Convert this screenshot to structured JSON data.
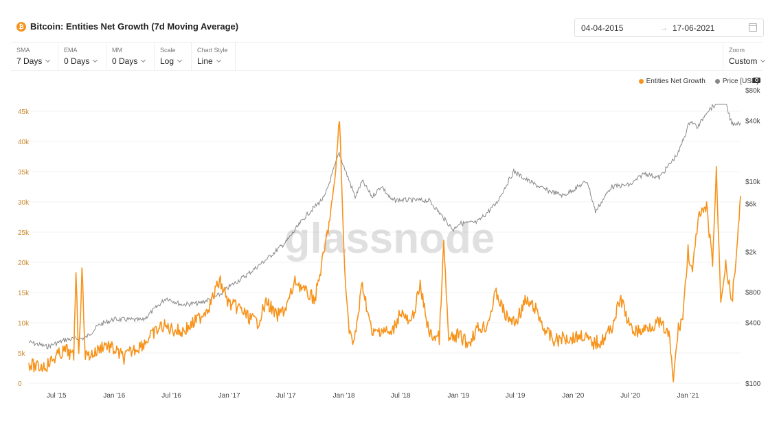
{
  "header": {
    "icon_symbol": "₿",
    "title": "Bitcoin: Entities Net Growth (7d Moving Average)",
    "date_start": "04-04-2015",
    "date_end": "17-06-2021",
    "arrow": "→"
  },
  "controls": [
    {
      "label": "SMA",
      "value": "7 Days"
    },
    {
      "label": "EMA",
      "value": "0 Days"
    },
    {
      "label": "MM",
      "value": "0 Days"
    },
    {
      "label": "Scale",
      "value": "Log"
    },
    {
      "label": "Chart Style",
      "value": "Line"
    }
  ],
  "zoom": {
    "label": "Zoom",
    "value": "Custom"
  },
  "watermark": "glassnode",
  "legend": [
    {
      "name": "Entities Net Growth",
      "color": "#f7931a"
    },
    {
      "name": "Price [USD]",
      "color": "#888888"
    }
  ],
  "chart_data": {
    "type": "line",
    "grid": true,
    "legend_position": "top-right",
    "x_ticks": [
      "Jul '15",
      "Jan '16",
      "Jul '16",
      "Jan '17",
      "Jul '17",
      "Jan '18",
      "Jul '18",
      "Jan '19",
      "Jul '19",
      "Jan '20",
      "Jul '20",
      "Jan '21"
    ],
    "y_left": {
      "ticks": [
        "0",
        "5k",
        "10k",
        "15k",
        "20k",
        "25k",
        "30k",
        "35k",
        "40k",
        "45k"
      ],
      "ylim": [
        0,
        45000
      ]
    },
    "y_right": {
      "scale": "log",
      "ticks": [
        "$100",
        "$400",
        "$800",
        "$2k",
        "$6k",
        "$10k",
        "$40k",
        "$80k"
      ],
      "ylim": [
        100,
        80000
      ]
    },
    "series": [
      {
        "name": "Entities Net Growth",
        "axis": "left",
        "color": "#f7931a",
        "points": [
          [
            "2015-04-04",
            3200
          ],
          [
            "2015-05-01",
            2600
          ],
          [
            "2015-06-01",
            3000
          ],
          [
            "2015-07-01",
            4500
          ],
          [
            "2015-08-01",
            5500
          ],
          [
            "2015-08-25",
            4200
          ],
          [
            "2015-09-01",
            19000
          ],
          [
            "2015-09-10",
            4000
          ],
          [
            "2015-09-20",
            19000
          ],
          [
            "2015-10-01",
            4500
          ],
          [
            "2015-11-01",
            5000
          ],
          [
            "2015-12-01",
            6500
          ],
          [
            "2016-01-01",
            5500
          ],
          [
            "2016-02-01",
            4200
          ],
          [
            "2016-03-01",
            5500
          ],
          [
            "2016-04-01",
            6500
          ],
          [
            "2016-05-01",
            8000
          ],
          [
            "2016-06-01",
            9500
          ],
          [
            "2016-07-01",
            9000
          ],
          [
            "2016-08-01",
            8500
          ],
          [
            "2016-09-01",
            9500
          ],
          [
            "2016-10-01",
            11000
          ],
          [
            "2016-11-01",
            13000
          ],
          [
            "2016-12-01",
            17000
          ],
          [
            "2017-01-01",
            13000
          ],
          [
            "2017-02-01",
            12500
          ],
          [
            "2017-03-01",
            11000
          ],
          [
            "2017-04-01",
            10000
          ],
          [
            "2017-05-01",
            13500
          ],
          [
            "2017-06-01",
            11000
          ],
          [
            "2017-07-01",
            12500
          ],
          [
            "2017-08-01",
            17000
          ],
          [
            "2017-09-01",
            15000
          ],
          [
            "2017-10-01",
            14000
          ],
          [
            "2017-11-01",
            22000
          ],
          [
            "2017-12-01",
            32000
          ],
          [
            "2017-12-18",
            44000
          ],
          [
            "2018-01-01",
            22000
          ],
          [
            "2018-01-15",
            10000
          ],
          [
            "2018-02-01",
            6000
          ],
          [
            "2018-03-01",
            16500
          ],
          [
            "2018-04-01",
            8000
          ],
          [
            "2018-05-01",
            9000
          ],
          [
            "2018-06-01",
            8000
          ],
          [
            "2018-07-01",
            12000
          ],
          [
            "2018-08-01",
            9500
          ],
          [
            "2018-09-01",
            16000
          ],
          [
            "2018-10-01",
            8000
          ],
          [
            "2018-11-01",
            7500
          ],
          [
            "2018-11-15",
            23000
          ],
          [
            "2018-12-01",
            7000
          ],
          [
            "2019-01-01",
            8000
          ],
          [
            "2019-02-01",
            6500
          ],
          [
            "2019-03-01",
            9000
          ],
          [
            "2019-04-01",
            9500
          ],
          [
            "2019-05-01",
            15000
          ],
          [
            "2019-06-01",
            11000
          ],
          [
            "2019-07-01",
            10000
          ],
          [
            "2019-08-01",
            13500
          ],
          [
            "2019-09-01",
            12500
          ],
          [
            "2019-10-01",
            9000
          ],
          [
            "2019-11-01",
            7000
          ],
          [
            "2019-12-01",
            7500
          ],
          [
            "2020-01-01",
            7500
          ],
          [
            "2020-02-01",
            8000
          ],
          [
            "2020-03-01",
            6500
          ],
          [
            "2020-04-01",
            7000
          ],
          [
            "2020-05-01",
            9000
          ],
          [
            "2020-06-01",
            14000
          ],
          [
            "2020-07-01",
            9000
          ],
          [
            "2020-08-01",
            8500
          ],
          [
            "2020-09-01",
            9500
          ],
          [
            "2020-10-01",
            10000
          ],
          [
            "2020-11-01",
            8000
          ],
          [
            "2020-11-15",
            500
          ],
          [
            "2020-12-01",
            9000
          ],
          [
            "2020-12-15",
            11000
          ],
          [
            "2021-01-01",
            22000
          ],
          [
            "2021-01-15",
            18000
          ],
          [
            "2021-02-01",
            27000
          ],
          [
            "2021-03-01",
            29000
          ],
          [
            "2021-03-20",
            20000
          ],
          [
            "2021-04-01",
            35000
          ],
          [
            "2021-04-15",
            14000
          ],
          [
            "2021-05-01",
            20000
          ],
          [
            "2021-05-20",
            13000
          ],
          [
            "2021-06-10",
            25000
          ],
          [
            "2021-06-17",
            31000
          ]
        ]
      },
      {
        "name": "Price [USD]",
        "axis": "right",
        "color": "#888888",
        "points": [
          [
            "2015-04-04",
            255
          ],
          [
            "2015-06-01",
            230
          ],
          [
            "2015-08-01",
            270
          ],
          [
            "2015-10-01",
            280
          ],
          [
            "2015-11-15",
            380
          ],
          [
            "2016-01-01",
            430
          ],
          [
            "2016-04-01",
            420
          ],
          [
            "2016-06-15",
            700
          ],
          [
            "2016-08-01",
            600
          ],
          [
            "2016-10-01",
            620
          ],
          [
            "2016-12-01",
            750
          ],
          [
            "2017-01-01",
            900
          ],
          [
            "2017-03-01",
            1200
          ],
          [
            "2017-05-01",
            1700
          ],
          [
            "2017-07-01",
            2500
          ],
          [
            "2017-09-01",
            4500
          ],
          [
            "2017-11-01",
            7000
          ],
          [
            "2017-12-17",
            19000
          ],
          [
            "2018-01-01",
            14000
          ],
          [
            "2018-02-06",
            7000
          ],
          [
            "2018-03-01",
            10000
          ],
          [
            "2018-04-01",
            7000
          ],
          [
            "2018-05-01",
            9000
          ],
          [
            "2018-06-01",
            6500
          ],
          [
            "2018-08-01",
            6500
          ],
          [
            "2018-10-01",
            6400
          ],
          [
            "2018-12-15",
            3300
          ],
          [
            "2019-01-01",
            3800
          ],
          [
            "2019-03-01",
            3900
          ],
          [
            "2019-05-01",
            6000
          ],
          [
            "2019-06-26",
            12500
          ],
          [
            "2019-08-01",
            10500
          ],
          [
            "2019-10-01",
            8300
          ],
          [
            "2019-12-01",
            7200
          ],
          [
            "2020-02-15",
            10000
          ],
          [
            "2020-03-12",
            5000
          ],
          [
            "2020-05-01",
            8800
          ],
          [
            "2020-07-01",
            9200
          ],
          [
            "2020-08-15",
            12000
          ],
          [
            "2020-10-01",
            10800
          ],
          [
            "2020-12-01",
            19000
          ],
          [
            "2021-01-08",
            40000
          ],
          [
            "2021-02-01",
            34000
          ],
          [
            "2021-03-01",
            49000
          ],
          [
            "2021-04-14",
            63000
          ],
          [
            "2021-05-01",
            58000
          ],
          [
            "2021-05-20",
            37000
          ],
          [
            "2021-06-17",
            38000
          ]
        ]
      }
    ]
  }
}
